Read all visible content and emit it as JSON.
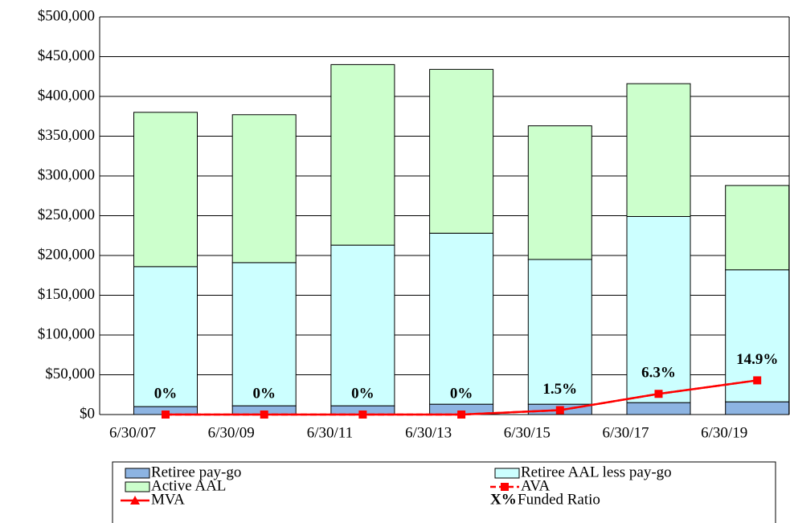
{
  "chart_data": {
    "type": "bar",
    "categories": [
      "6/30/07",
      "6/30/09",
      "6/30/11",
      "6/30/13",
      "6/30/15",
      "6/30/17",
      "6/30/19"
    ],
    "series": [
      {
        "name": "Retiree pay-go",
        "color": "#8db4e2",
        "values": [
          10000,
          11000,
          11000,
          13000,
          13000,
          15000,
          16000
        ]
      },
      {
        "name": "Retiree AAL less pay-go",
        "color": "#ccffff",
        "values": [
          176000,
          180000,
          202000,
          215000,
          182000,
          234000,
          166000
        ]
      },
      {
        "name": "Active AAL",
        "color": "#ccffcc",
        "values": [
          194000,
          186000,
          227000,
          206000,
          168000,
          167000,
          106000
        ]
      },
      {
        "name": "AVA",
        "type": "line",
        "style": "dashed",
        "marker": "square",
        "color": "#ff0000",
        "values": [
          0,
          0,
          0,
          0,
          5500,
          26000,
          43000
        ]
      },
      {
        "name": "MVA",
        "type": "line",
        "style": "solid",
        "marker": "triangle",
        "color": "#ff0000",
        "values": [
          0,
          0,
          0,
          0,
          5500,
          26000,
          43000
        ]
      }
    ],
    "funded_ratio_labels": [
      "0%",
      "0%",
      "0%",
      "0%",
      "1.5%",
      "6.3%",
      "14.9%"
    ],
    "funded_ratio_legend": {
      "key": "X%",
      "label": "Funded Ratio"
    },
    "ylim": [
      0,
      500000
    ],
    "yticks": [
      {
        "value": 0,
        "label": "$0"
      },
      {
        "value": 50000,
        "label": "$50,000"
      },
      {
        "value": 100000,
        "label": "$100,000"
      },
      {
        "value": 150000,
        "label": "$150,000"
      },
      {
        "value": 200000,
        "label": "$200,000"
      },
      {
        "value": 250000,
        "label": "$250,000"
      },
      {
        "value": 300000,
        "label": "$300,000"
      },
      {
        "value": 350000,
        "label": "$350,000"
      },
      {
        "value": 400000,
        "label": "$400,000"
      },
      {
        "value": 450000,
        "label": "$450,000"
      },
      {
        "value": 500000,
        "label": "$500,000"
      }
    ],
    "grid": true
  }
}
